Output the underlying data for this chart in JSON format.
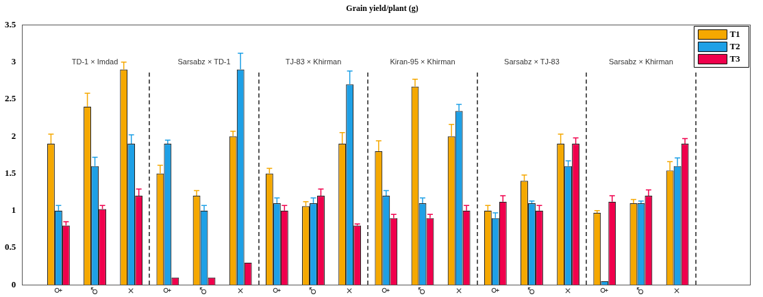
{
  "chart_data": {
    "type": "bar",
    "title": "Grain yield/plant (g)",
    "categories": [
      null,
      "♀",
      "♂",
      "×",
      "♀",
      "♂",
      "×",
      "♀",
      "♂",
      "×",
      "♀",
      "♂",
      "×",
      "♀",
      "♂",
      "×",
      "♀",
      "♂",
      "×",
      null,
      null
    ],
    "series": [
      {
        "name": "T1",
        "color": "#f5a800",
        "values": [
          null,
          1.9,
          2.4,
          2.9,
          1.5,
          1.2,
          2.0,
          1.5,
          1.06,
          1.9,
          1.8,
          2.67,
          2.0,
          1.0,
          1.4,
          1.9,
          0.97,
          1.1,
          1.54,
          null,
          null
        ],
        "errors": [
          null,
          [
            1.9,
            2.03
          ],
          [
            2.4,
            2.58
          ],
          [
            2.9,
            3.0
          ],
          [
            1.5,
            1.61
          ],
          [
            1.2,
            1.27
          ],
          [
            2.0,
            2.07
          ],
          [
            1.5,
            1.57
          ],
          [
            1.06,
            1.12
          ],
          [
            1.9,
            2.05
          ],
          [
            1.8,
            1.94
          ],
          [
            2.67,
            2.77
          ],
          [
            2.0,
            2.16
          ],
          [
            1.0,
            1.07
          ],
          [
            1.4,
            1.48
          ],
          [
            1.9,
            2.03
          ],
          [
            0.97,
            1.0
          ],
          [
            1.1,
            1.15
          ],
          [
            1.54,
            1.66
          ],
          null,
          null
        ]
      },
      {
        "name": "T2",
        "color": "#1ea0e6",
        "values": [
          null,
          1.0,
          1.6,
          1.9,
          1.9,
          1.0,
          2.9,
          1.1,
          1.1,
          2.7,
          1.2,
          1.1,
          2.34,
          0.9,
          1.1,
          1.6,
          0.05,
          1.1,
          1.6,
          null,
          null
        ],
        "errors": [
          null,
          [
            1.0,
            1.07
          ],
          [
            1.6,
            1.72
          ],
          [
            1.9,
            2.02
          ],
          [
            1.9,
            1.95
          ],
          [
            1.0,
            1.07
          ],
          [
            2.9,
            3.12
          ],
          [
            1.1,
            1.17
          ],
          [
            1.1,
            1.17
          ],
          [
            2.7,
            2.88
          ],
          [
            1.2,
            1.27
          ],
          [
            1.1,
            1.17
          ],
          [
            2.34,
            2.43
          ],
          [
            0.9,
            0.97
          ],
          [
            1.1,
            1.13
          ],
          [
            1.6,
            1.67
          ],
          null,
          [
            1.1,
            1.13
          ],
          [
            1.6,
            1.71
          ],
          null,
          null
        ]
      },
      {
        "name": "T3",
        "color": "#f0004c",
        "values": [
          null,
          0.8,
          1.02,
          1.2,
          0.1,
          0.1,
          0.3,
          1.0,
          1.2,
          0.8,
          0.9,
          0.9,
          1.0,
          1.12,
          1.0,
          1.9,
          1.12,
          1.2,
          1.9,
          null,
          null
        ],
        "errors": [
          null,
          [
            0.8,
            0.85
          ],
          [
            1.02,
            1.07
          ],
          [
            1.2,
            1.29
          ],
          null,
          null,
          null,
          [
            1.0,
            1.07
          ],
          [
            1.2,
            1.29
          ],
          [
            0.8,
            0.82
          ],
          [
            0.9,
            0.95
          ],
          [
            0.9,
            0.95
          ],
          [
            1.0,
            1.07
          ],
          [
            1.12,
            1.2
          ],
          [
            1.0,
            1.07
          ],
          [
            1.9,
            1.98
          ],
          [
            1.12,
            1.2
          ],
          [
            1.2,
            1.28
          ],
          [
            1.9,
            1.97
          ],
          null,
          null
        ]
      }
    ],
    "ylim": [
      0,
      3.5
    ],
    "yticks": [
      0,
      0.5,
      1,
      1.5,
      2,
      2.5,
      3,
      3.5
    ],
    "grid": false,
    "legend": "top right",
    "annotations": [
      "TD-1 × Imdad",
      "Sarsabz × TD-1",
      "TJ-83 × Khirman",
      "Kiran-95 × Khirman",
      "Sarsabz × TJ-83",
      "Sarsabz × Khirman"
    ]
  }
}
